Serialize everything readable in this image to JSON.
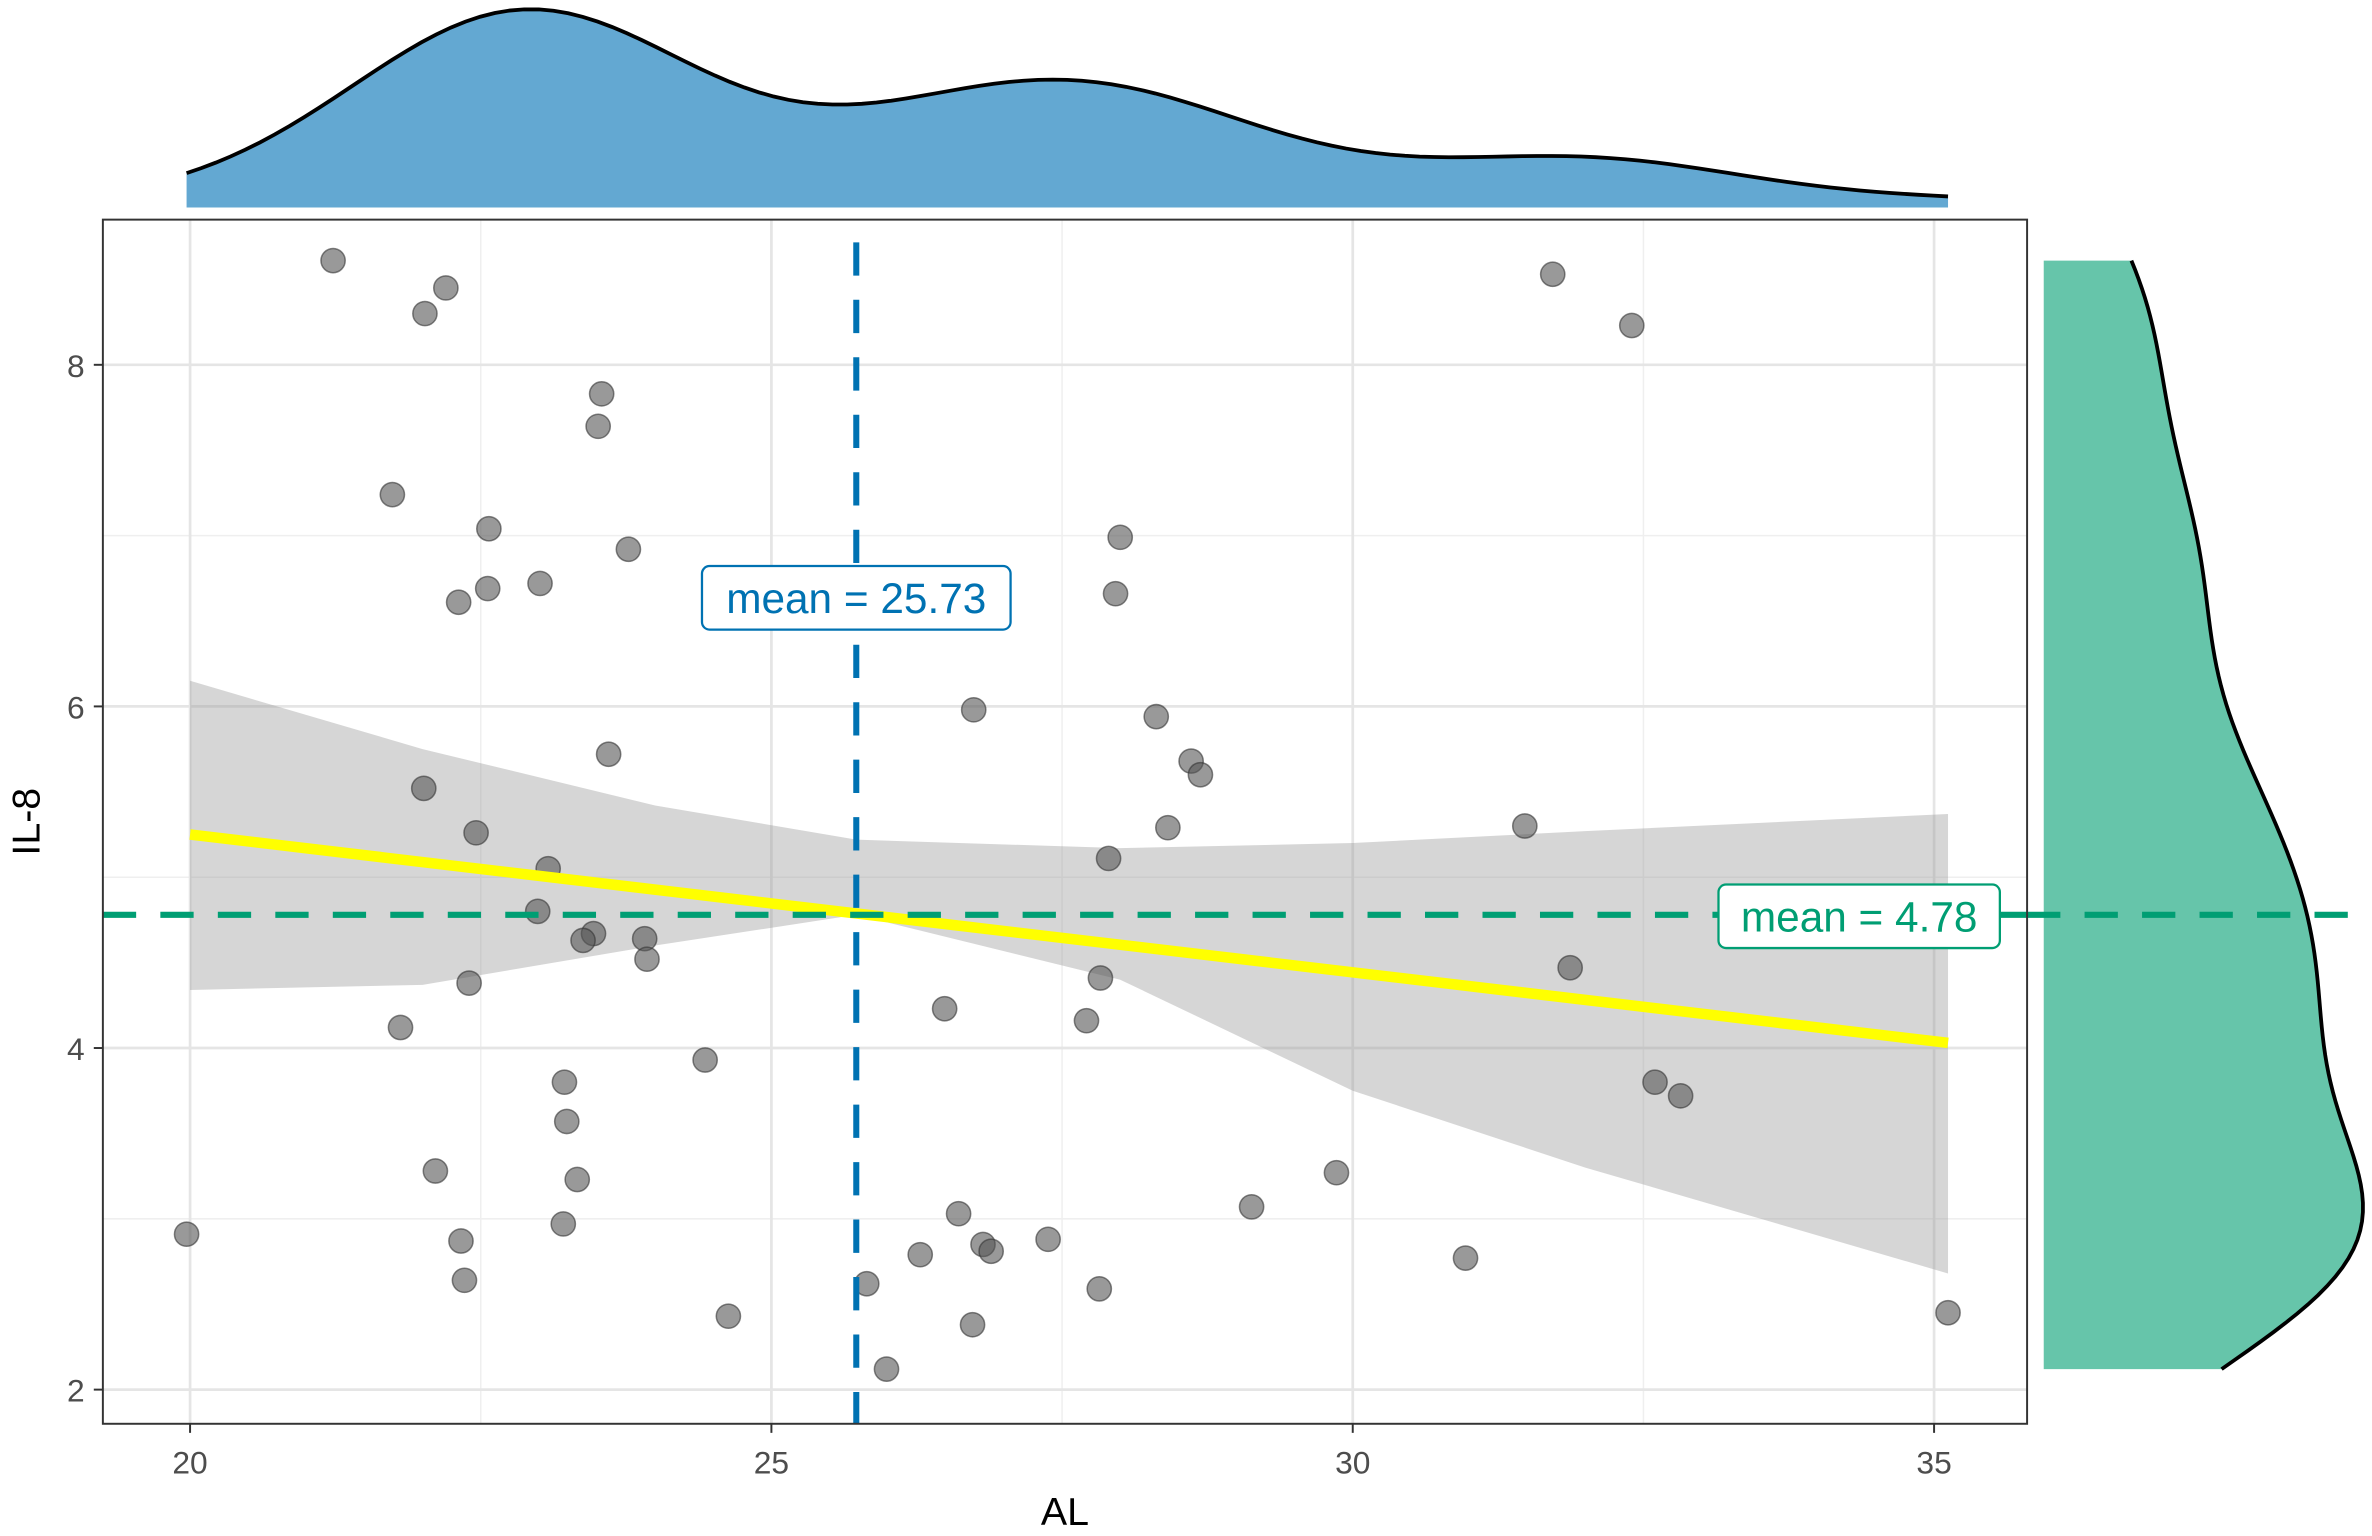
{
  "chart_data": {
    "type": "scatter",
    "xlabel": "AL",
    "ylabel": "IL-8",
    "xlim": [
      19.25,
      35.8
    ],
    "ylim": [
      1.8,
      8.85
    ],
    "x_ticks": [
      20,
      25,
      30,
      35
    ],
    "y_ticks": [
      2,
      4,
      6,
      8
    ],
    "grid": true,
    "points": [
      [
        21.23,
        8.61
      ],
      [
        22.2,
        8.45
      ],
      [
        22.02,
        8.3
      ],
      [
        23.54,
        7.83
      ],
      [
        23.51,
        7.64
      ],
      [
        21.74,
        7.24
      ],
      [
        22.57,
        7.04
      ],
      [
        23.77,
        6.92
      ],
      [
        23.01,
        6.72
      ],
      [
        22.56,
        6.69
      ],
      [
        22.31,
        6.61
      ],
      [
        23.6,
        5.72
      ],
      [
        22.01,
        5.52
      ],
      [
        22.46,
        5.26
      ],
      [
        23.08,
        5.05
      ],
      [
        22.99,
        4.8
      ],
      [
        23.47,
        4.67
      ],
      [
        23.38,
        4.63
      ],
      [
        23.91,
        4.64
      ],
      [
        23.93,
        4.52
      ],
      [
        22.4,
        4.38
      ],
      [
        21.81,
        4.12
      ],
      [
        24.43,
        3.93
      ],
      [
        23.22,
        3.8
      ],
      [
        23.24,
        3.57
      ],
      [
        22.11,
        3.28
      ],
      [
        23.33,
        3.23
      ],
      [
        23.21,
        2.97
      ],
      [
        22.33,
        2.87
      ],
      [
        22.36,
        2.64
      ],
      [
        19.97,
        2.91
      ],
      [
        24.63,
        2.43
      ],
      [
        25.82,
        2.62
      ],
      [
        25.99,
        2.12
      ],
      [
        26.28,
        2.79
      ],
      [
        26.61,
        3.03
      ],
      [
        26.73,
        2.38
      ],
      [
        26.82,
        2.85
      ],
      [
        26.89,
        2.81
      ],
      [
        27.38,
        2.88
      ],
      [
        27.82,
        2.59
      ],
      [
        26.49,
        4.23
      ],
      [
        26.74,
        5.98
      ],
      [
        28.0,
        6.99
      ],
      [
        27.96,
        6.66
      ],
      [
        28.31,
        5.94
      ],
      [
        28.61,
        5.68
      ],
      [
        28.69,
        5.6
      ],
      [
        28.41,
        5.29
      ],
      [
        27.9,
        5.11
      ],
      [
        27.83,
        4.41
      ],
      [
        27.71,
        4.16
      ],
      [
        29.13,
        3.07
      ],
      [
        29.86,
        3.27
      ],
      [
        30.97,
        2.77
      ],
      [
        31.48,
        5.3
      ],
      [
        31.87,
        4.47
      ],
      [
        31.72,
        8.53
      ],
      [
        32.4,
        8.23
      ],
      [
        32.6,
        3.8
      ],
      [
        32.82,
        3.72
      ],
      [
        35.12,
        2.45
      ]
    ],
    "regression": {
      "x": [
        20,
        35.12
      ],
      "y": [
        5.25,
        4.03
      ],
      "color": "#FFFF00"
    },
    "confidence_band": {
      "x": [
        20,
        22,
        24,
        25.73,
        28,
        30,
        32,
        35.12
      ],
      "upper": [
        6.15,
        5.75,
        5.42,
        5.22,
        5.17,
        5.2,
        5.27,
        5.37
      ],
      "lower": [
        4.34,
        4.37,
        4.6,
        4.78,
        4.4,
        3.75,
        3.3,
        2.68
      ]
    },
    "mean_x": {
      "value": 25.73,
      "label": "mean = 25.73",
      "color": "#0072B2"
    },
    "mean_y": {
      "value": 4.78,
      "label": "mean = 4.78",
      "color": "#009E73"
    },
    "marginal_x": {
      "type": "density",
      "fill": "#63A8D2"
    },
    "marginal_y": {
      "type": "density",
      "fill": "#66C5AA"
    }
  }
}
